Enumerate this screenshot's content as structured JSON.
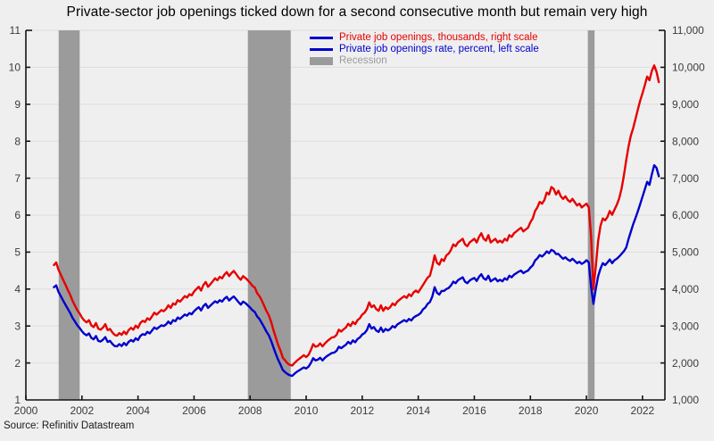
{
  "title": "Private-sector job openings ticked down for a second consecutive month but remain very high",
  "source_note": "Source: Refinitiv Datastream",
  "legend": {
    "items": [
      {
        "label": "Private job openings, thousands, right scale",
        "color": "#e60000",
        "swatch": "line"
      },
      {
        "label": "Private job openings rate, percent, left scale",
        "color": "#0000cc",
        "swatch": "line"
      },
      {
        "label": "Recession",
        "color": "#9b9b9b",
        "swatch": "box"
      }
    ]
  },
  "colors": {
    "background": "#efefef",
    "gridline": "#dedede",
    "axis": "#141414",
    "tick_text": "#3c3c3c",
    "recession_band": "#9b9b9b",
    "openings_line": "#e60000",
    "rate_line": "#0000cc"
  },
  "chart_data": {
    "type": "line",
    "title": "Private-sector job openings ticked down for a second consecutive month but remain very high",
    "x_axis": {
      "range": [
        2000,
        2022.8
      ],
      "tick_years": [
        2000,
        2002,
        2004,
        2006,
        2008,
        2010,
        2012,
        2014,
        2016,
        2018,
        2020,
        2022
      ]
    },
    "left_axis": {
      "label": "Private job openings rate, percent",
      "range": [
        1,
        11
      ],
      "ticks": [
        1,
        2,
        3,
        4,
        5,
        6,
        7,
        8,
        9,
        10,
        11
      ]
    },
    "right_axis": {
      "label": "Private job openings, thousands",
      "range": [
        1000,
        11000
      ],
      "ticks": [
        1000,
        2000,
        3000,
        4000,
        5000,
        6000,
        7000,
        8000,
        9000,
        10000,
        11000
      ],
      "labels": [
        "1,000",
        "2,000",
        "3,000",
        "4,000",
        "5,000",
        "6,000",
        "7,000",
        "8,000",
        "9,000",
        "10,000",
        "11,000"
      ]
    },
    "recessions": [
      [
        2001.17,
        2001.92
      ],
      [
        2007.92,
        2009.45
      ],
      [
        2020.05,
        2020.29
      ]
    ],
    "series": [
      {
        "name": "Private job openings rate, percent, left scale",
        "axis": "left",
        "color": "#0000cc",
        "start_year": 2001,
        "frequency": "monthly",
        "values": [
          4.05,
          4.1,
          3.92,
          3.8,
          3.68,
          3.57,
          3.46,
          3.35,
          3.22,
          3.12,
          3.02,
          2.95,
          2.86,
          2.79,
          2.75,
          2.8,
          2.68,
          2.64,
          2.73,
          2.6,
          2.58,
          2.63,
          2.7,
          2.57,
          2.6,
          2.52,
          2.46,
          2.45,
          2.51,
          2.46,
          2.54,
          2.48,
          2.57,
          2.62,
          2.58,
          2.67,
          2.62,
          2.73,
          2.78,
          2.76,
          2.84,
          2.8,
          2.88,
          2.96,
          2.92,
          2.97,
          3.02,
          3.0,
          3.04,
          3.12,
          3.06,
          3.16,
          3.13,
          3.23,
          3.19,
          3.25,
          3.31,
          3.28,
          3.35,
          3.32,
          3.4,
          3.46,
          3.51,
          3.42,
          3.54,
          3.6,
          3.49,
          3.55,
          3.61,
          3.67,
          3.63,
          3.7,
          3.66,
          3.74,
          3.79,
          3.69,
          3.75,
          3.8,
          3.73,
          3.65,
          3.58,
          3.66,
          3.62,
          3.56,
          3.5,
          3.43,
          3.38,
          3.26,
          3.19,
          3.08,
          2.97,
          2.85,
          2.75,
          2.6,
          2.42,
          2.25,
          2.09,
          1.96,
          1.81,
          1.75,
          1.7,
          1.67,
          1.65,
          1.71,
          1.76,
          1.8,
          1.84,
          1.88,
          1.85,
          1.9,
          2.0,
          2.13,
          2.07,
          2.09,
          2.14,
          2.07,
          2.14,
          2.19,
          2.23,
          2.27,
          2.28,
          2.33,
          2.44,
          2.4,
          2.45,
          2.49,
          2.57,
          2.52,
          2.61,
          2.56,
          2.65,
          2.69,
          2.77,
          2.81,
          2.89,
          3.05,
          2.93,
          2.97,
          2.88,
          2.84,
          2.96,
          2.84,
          2.92,
          2.88,
          2.92,
          3.0,
          2.96,
          3.04,
          3.08,
          3.12,
          3.16,
          3.12,
          3.19,
          3.15,
          3.23,
          3.27,
          3.3,
          3.35,
          3.45,
          3.5,
          3.6,
          3.65,
          3.8,
          4.05,
          3.9,
          3.85,
          3.95,
          3.95,
          4.0,
          4.03,
          4.1,
          4.2,
          4.16,
          4.24,
          4.28,
          4.32,
          4.2,
          4.16,
          4.23,
          4.27,
          4.3,
          4.22,
          4.33,
          4.4,
          4.29,
          4.25,
          4.36,
          4.21,
          4.25,
          4.29,
          4.21,
          4.25,
          4.21,
          4.29,
          4.25,
          4.36,
          4.32,
          4.39,
          4.43,
          4.47,
          4.5,
          4.43,
          4.47,
          4.5,
          4.58,
          4.64,
          4.77,
          4.83,
          4.92,
          4.88,
          4.94,
          5.02,
          4.97,
          5.06,
          5.03,
          4.95,
          4.95,
          4.88,
          4.82,
          4.86,
          4.8,
          4.76,
          4.82,
          4.76,
          4.7,
          4.74,
          4.68,
          4.72,
          4.78,
          4.72,
          4.06,
          3.6,
          4.0,
          4.35,
          4.55,
          4.7,
          4.65,
          4.72,
          4.8,
          4.7,
          4.78,
          4.82,
          4.88,
          4.95,
          5.02,
          5.12,
          5.35,
          5.55,
          5.75,
          5.92,
          6.1,
          6.3,
          6.5,
          6.7,
          6.9,
          6.82,
          7.1,
          7.35,
          7.28,
          7.05
        ]
      },
      {
        "name": "Private job openings, thousands, right scale",
        "axis": "right",
        "color": "#e60000",
        "start_year": 2001,
        "frequency": "monthly",
        "values": [
          4650,
          4720,
          4520,
          4380,
          4240,
          4110,
          3970,
          3840,
          3680,
          3550,
          3430,
          3340,
          3230,
          3150,
          3100,
          3160,
          3020,
          2970,
          3080,
          2930,
          2900,
          2960,
          3050,
          2890,
          2920,
          2830,
          2760,
          2740,
          2810,
          2760,
          2850,
          2780,
          2890,
          2950,
          2900,
          3010,
          2950,
          3080,
          3140,
          3110,
          3210,
          3170,
          3260,
          3360,
          3310,
          3370,
          3430,
          3400,
          3460,
          3560,
          3490,
          3610,
          3580,
          3700,
          3660,
          3730,
          3810,
          3770,
          3860,
          3830,
          3930,
          4000,
          4060,
          3960,
          4110,
          4190,
          4060,
          4130,
          4210,
          4290,
          4240,
          4330,
          4290,
          4390,
          4460,
          4350,
          4430,
          4490,
          4410,
          4320,
          4250,
          4350,
          4300,
          4240,
          4170,
          4090,
          4040,
          3890,
          3810,
          3690,
          3550,
          3410,
          3290,
          3110,
          2890,
          2690,
          2490,
          2340,
          2140,
          2070,
          1990,
          1950,
          1930,
          2000,
          2060,
          2110,
          2160,
          2210,
          2160,
          2220,
          2350,
          2510,
          2440,
          2460,
          2530,
          2450,
          2530,
          2590,
          2640,
          2690,
          2700,
          2760,
          2900,
          2850,
          2910,
          2960,
          3060,
          3000,
          3110,
          3050,
          3160,
          3210,
          3310,
          3360,
          3460,
          3640,
          3510,
          3560,
          3460,
          3410,
          3560,
          3410,
          3510,
          3460,
          3510,
          3610,
          3560,
          3660,
          3710,
          3760,
          3810,
          3760,
          3860,
          3810,
          3910,
          3960,
          3910,
          4010,
          4110,
          4210,
          4310,
          4360,
          4610,
          4910,
          4710,
          4660,
          4810,
          4760,
          4910,
          4960,
          5060,
          5210,
          5160,
          5260,
          5310,
          5360,
          5210,
          5160,
          5260,
          5310,
          5360,
          5260,
          5410,
          5510,
          5360,
          5310,
          5460,
          5260,
          5310,
          5360,
          5260,
          5310,
          5260,
          5360,
          5310,
          5460,
          5410,
          5510,
          5560,
          5610,
          5660,
          5560,
          5610,
          5660,
          5810,
          5910,
          6110,
          6210,
          6360,
          6310,
          6410,
          6610,
          6560,
          6760,
          6710,
          6560,
          6660,
          6510,
          6440,
          6510,
          6410,
          6360,
          6440,
          6350,
          6260,
          6310,
          6210,
          6260,
          6310,
          6210,
          5410,
          4000,
          4600,
          5310,
          5710,
          5910,
          5860,
          5950,
          6110,
          6010,
          6150,
          6280,
          6450,
          6700,
          7050,
          7480,
          7850,
          8150,
          8350,
          8600,
          8850,
          9100,
          9300,
          9520,
          9750,
          9650,
          9900,
          10050,
          9880,
          9600
        ]
      }
    ]
  }
}
